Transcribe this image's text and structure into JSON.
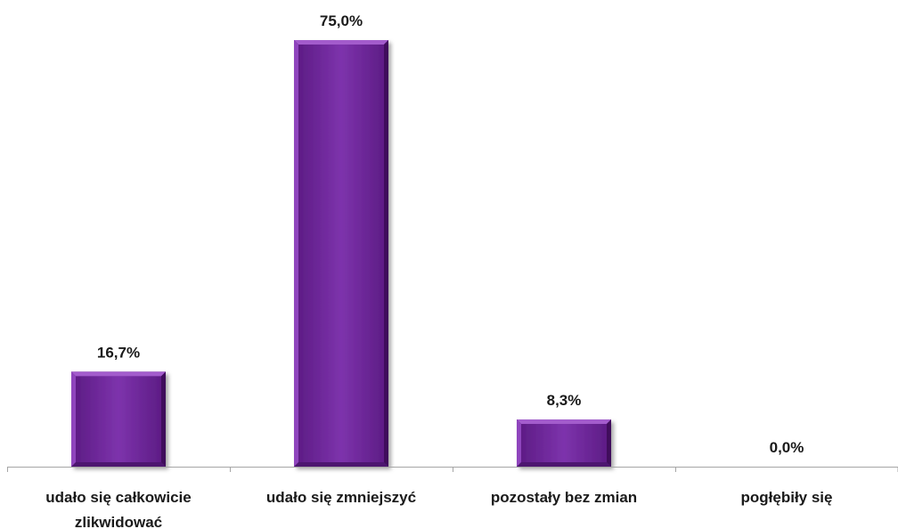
{
  "chart_data": {
    "type": "bar",
    "categories": [
      [
        "udało się całkowicie",
        "zlikwidować"
      ],
      [
        "udało się zmniejszyć"
      ],
      [
        "pozostały bez zmian"
      ],
      [
        "pogłębiły się"
      ]
    ],
    "values": [
      16.7,
      75.0,
      8.3,
      0.0
    ],
    "value_labels": [
      "16,7%",
      "75,0%",
      "8,3%",
      "0,0%"
    ],
    "ylim": [
      0,
      75
    ],
    "grid": false,
    "legend": "none",
    "colors": {
      "bar": "#7a2fa8",
      "bar_light": "#a35ccc",
      "bar_dark": "#4e1670",
      "axis": "#a6a6a6",
      "text": "#1a1a1a"
    }
  }
}
